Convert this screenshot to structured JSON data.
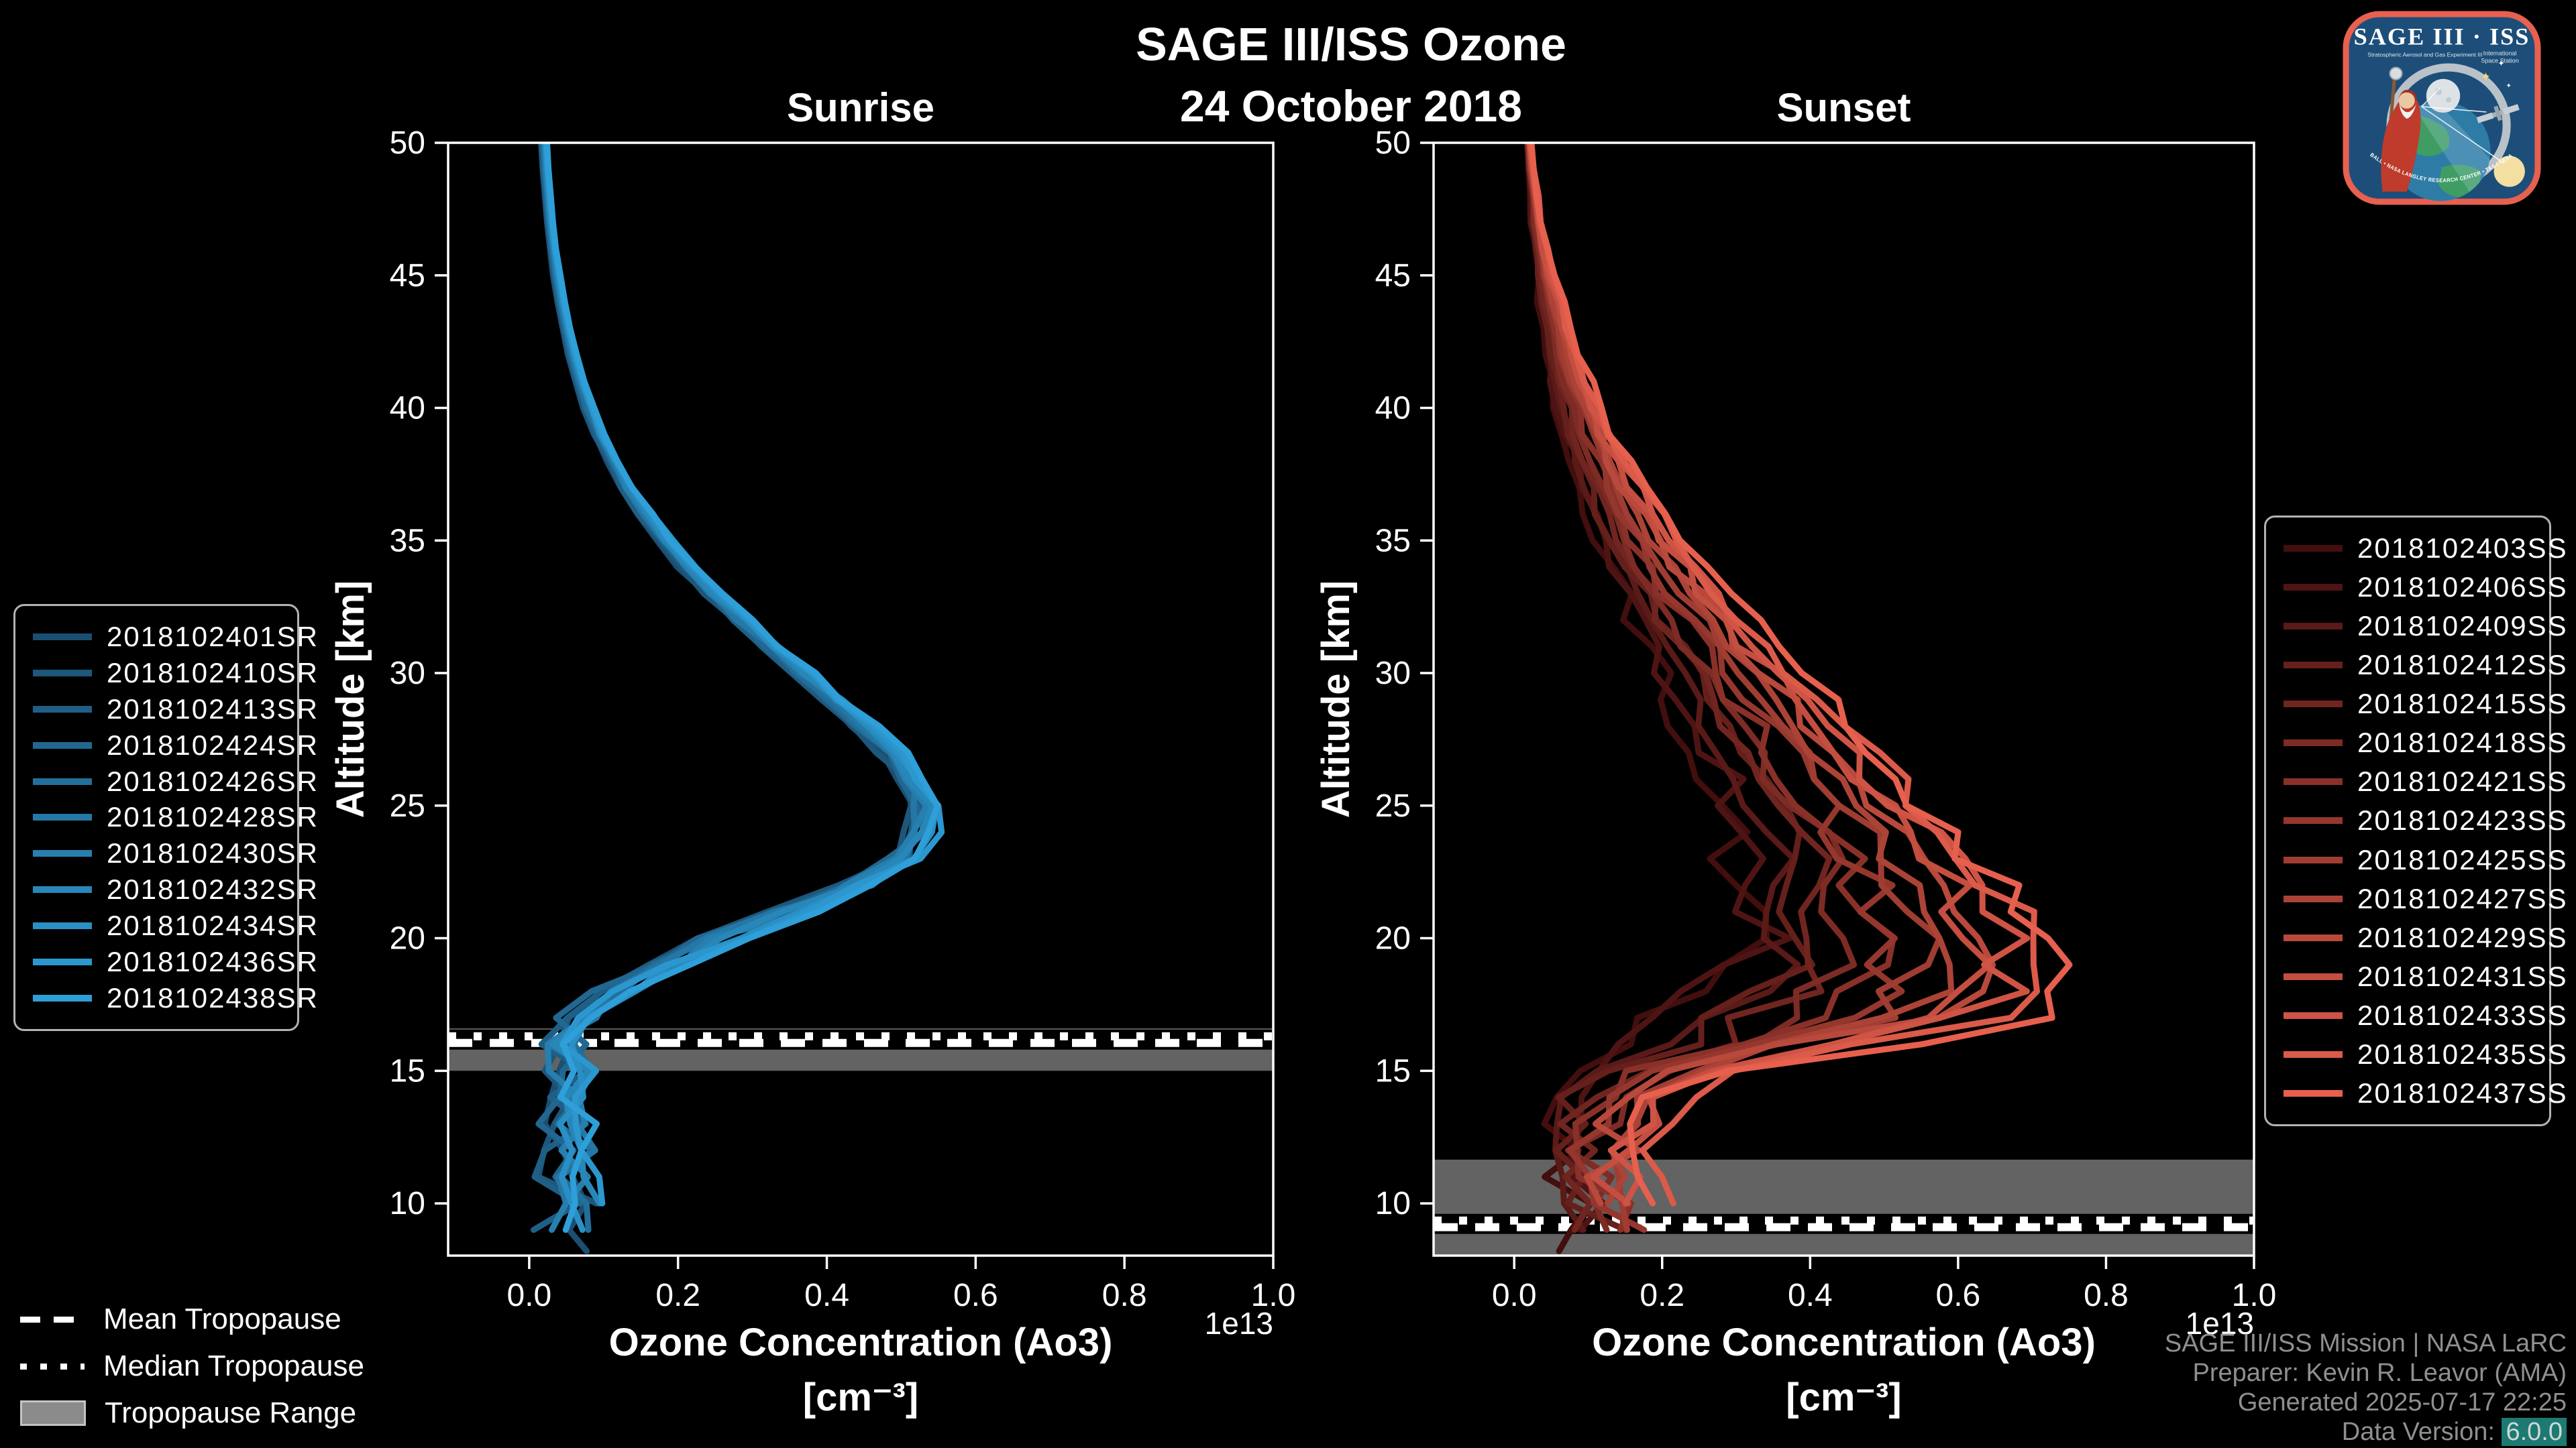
{
  "figure": {
    "suptitle_line1": "SAGE III/ISS Ozone",
    "suptitle_line2": "24 October 2018",
    "background_color": "#000000",
    "text_color": "#ffffff"
  },
  "chart_data": [
    {
      "type": "line",
      "id": "sunrise",
      "title": "Sunrise",
      "ylabel": "Altitude [km]",
      "xlabel_line1": "Ozone Concentration (Ao3)",
      "xlabel_line2": "[cm⁻³]",
      "offset_label": "1e13",
      "xlim": [
        -0.109,
        1.0
      ],
      "ylim": [
        8.03,
        50
      ],
      "x_ticks": [
        0.0,
        0.2,
        0.4,
        0.6,
        0.8,
        1.0
      ],
      "x_tick_labels": [
        "0.0",
        "0.2",
        "0.4",
        "0.6",
        "0.8",
        "1.0"
      ],
      "y_ticks": [
        50,
        45,
        40,
        35,
        30,
        25,
        20,
        15,
        10
      ],
      "grid": false,
      "legend_position": "left-outside",
      "altitudes": [
        50,
        49,
        48,
        47,
        46,
        45,
        44,
        43,
        42,
        41,
        40,
        39,
        38,
        37,
        36,
        35,
        34,
        33,
        32,
        31,
        30,
        29,
        28,
        27,
        26,
        25,
        24,
        23,
        22,
        21,
        20,
        19,
        18,
        17,
        16,
        15,
        14,
        13,
        12,
        11,
        10,
        9,
        8.2
      ],
      "mean_profile": [
        0.02,
        0.022,
        0.025,
        0.028,
        0.032,
        0.037,
        0.043,
        0.05,
        0.058,
        0.068,
        0.08,
        0.094,
        0.112,
        0.132,
        0.155,
        0.182,
        0.212,
        0.246,
        0.284,
        0.325,
        0.368,
        0.41,
        0.45,
        0.487,
        0.515,
        0.53,
        0.527,
        0.505,
        0.445,
        0.352,
        0.258,
        0.178,
        0.118,
        0.072,
        0.048,
        0.055,
        0.045,
        0.06,
        0.05,
        0.045,
        0.058,
        0.052,
        0.12
      ],
      "spread_profile": [
        0.004,
        0.004,
        0.004,
        0.004,
        0.004,
        0.005,
        0.005,
        0.005,
        0.006,
        0.006,
        0.007,
        0.007,
        0.008,
        0.008,
        0.009,
        0.01,
        0.01,
        0.011,
        0.012,
        0.012,
        0.013,
        0.013,
        0.014,
        0.014,
        0.015,
        0.015,
        0.016,
        0.018,
        0.02,
        0.02,
        0.02,
        0.018,
        0.016,
        0.014,
        0.012,
        0.012,
        0.012,
        0.012,
        0.012,
        0.012,
        0.012,
        0.012,
        0.012
      ],
      "noise_profile": [
        0,
        0,
        0,
        0,
        0,
        0,
        0,
        0,
        0,
        0,
        0.002,
        0.002,
        0.003,
        0.003,
        0.004,
        0.004,
        0.005,
        0.005,
        0.006,
        0.006,
        0.007,
        0.008,
        0.009,
        0.01,
        0.012,
        0.014,
        0.016,
        0.018,
        0.022,
        0.024,
        0.024,
        0.022,
        0.022,
        0.024,
        0.028,
        0.034,
        0.036,
        0.038,
        0.038,
        0.04,
        0.042,
        0.044,
        0.05
      ],
      "peak_value_1e13": 0.53,
      "peak_altitude_km": 25,
      "tropopause": {
        "mean_km": 16.05,
        "median_km": 16.3,
        "range_km": [
          15.0,
          16.6
        ]
      },
      "colors": {
        "band": "rgba(160,160,160,0.62)",
        "tropopause_lines": "#ffffff",
        "frame": "#ffffff"
      },
      "series": [
        {
          "label": "2018102401SR",
          "color": "#1b4f72"
        },
        {
          "label": "2018102410SR",
          "color": "#1d577c"
        },
        {
          "label": "2018102413SR",
          "color": "#1f5f86"
        },
        {
          "label": "2018102424SR",
          "color": "#216791"
        },
        {
          "label": "2018102426SR",
          "color": "#236f9b"
        },
        {
          "label": "2018102428SR",
          "color": "#2577a5"
        },
        {
          "label": "2018102430SR",
          "color": "#267faf"
        },
        {
          "label": "2018102432SR",
          "color": "#2887b9"
        },
        {
          "label": "2018102434SR",
          "color": "#2a8fc4"
        },
        {
          "label": "2018102436SR",
          "color": "#2c97ce"
        },
        {
          "label": "2018102438SR",
          "color": "#2e9fd8"
        }
      ]
    },
    {
      "type": "line",
      "id": "sunset",
      "title": "Sunset",
      "ylabel": "Altitude [km]",
      "xlabel_line1": "Ozone Concentration (Ao3)",
      "xlabel_line2": "[cm⁻³]",
      "offset_label": "1e13",
      "xlim": [
        -0.109,
        1.0
      ],
      "ylim": [
        8.03,
        50
      ],
      "x_ticks": [
        0.0,
        0.2,
        0.4,
        0.6,
        0.8,
        1.0
      ],
      "x_tick_labels": [
        "0.0",
        "0.2",
        "0.4",
        "0.6",
        "0.8",
        "1.0"
      ],
      "y_ticks": [
        50,
        45,
        40,
        35,
        30,
        25,
        20,
        15,
        10
      ],
      "grid": false,
      "legend_position": "right-outside",
      "altitudes": [
        50,
        49,
        48,
        47,
        46,
        45,
        44,
        43,
        42,
        41,
        40,
        39,
        38,
        37,
        36,
        35,
        34,
        33,
        32,
        31,
        30,
        29,
        28,
        27,
        26,
        25,
        24,
        23,
        22,
        21,
        20,
        19,
        18,
        17,
        16,
        15,
        14,
        13,
        12,
        11,
        10,
        9,
        8.2
      ],
      "mean_profile": [
        0.02,
        0.023,
        0.027,
        0.031,
        0.036,
        0.042,
        0.049,
        0.057,
        0.066,
        0.076,
        0.088,
        0.101,
        0.116,
        0.132,
        0.15,
        0.17,
        0.192,
        0.215,
        0.239,
        0.264,
        0.29,
        0.316,
        0.342,
        0.368,
        0.394,
        0.42,
        0.445,
        0.468,
        0.488,
        0.503,
        0.512,
        0.51,
        0.49,
        0.44,
        0.33,
        0.2,
        0.145,
        0.125,
        0.112,
        0.115,
        0.13,
        0.14,
        0.145
      ],
      "spread_profile": [
        0.003,
        0.004,
        0.005,
        0.007,
        0.009,
        0.012,
        0.015,
        0.018,
        0.022,
        0.026,
        0.03,
        0.035,
        0.04,
        0.046,
        0.052,
        0.058,
        0.065,
        0.072,
        0.08,
        0.088,
        0.096,
        0.104,
        0.112,
        0.122,
        0.132,
        0.142,
        0.152,
        0.165,
        0.18,
        0.196,
        0.212,
        0.228,
        0.25,
        0.24,
        0.17,
        0.1,
        0.07,
        0.06,
        0.055,
        0.055,
        0.055,
        0.055,
        0.055
      ],
      "noise_profile": [
        0.001,
        0.001,
        0.002,
        0.002,
        0.003,
        0.003,
        0.004,
        0.004,
        0.005,
        0.005,
        0.006,
        0.007,
        0.008,
        0.009,
        0.01,
        0.011,
        0.012,
        0.013,
        0.014,
        0.016,
        0.018,
        0.02,
        0.022,
        0.024,
        0.026,
        0.028,
        0.03,
        0.032,
        0.034,
        0.036,
        0.038,
        0.04,
        0.042,
        0.044,
        0.046,
        0.044,
        0.04,
        0.038,
        0.036,
        0.036,
        0.038,
        0.04,
        0.042
      ],
      "peak_value_1e13": 0.77,
      "peak_altitude_km": 17.5,
      "tropopause": {
        "mean_km": 9.1,
        "median_km": 9.35,
        "range_km": [
          8.03,
          11.65
        ]
      },
      "colors": {
        "band": "rgba(160,160,160,0.62)",
        "tropopause_lines": "#ffffff",
        "frame": "#ffffff"
      },
      "series": [
        {
          "label": "2018102403SS",
          "color": "#420e0e"
        },
        {
          "label": "2018102406SS",
          "color": "#4e1413"
        },
        {
          "label": "2018102409SS",
          "color": "#5a1a17"
        },
        {
          "label": "2018102412SS",
          "color": "#65201c"
        },
        {
          "label": "2018102415SS",
          "color": "#712520"
        },
        {
          "label": "2018102418SS",
          "color": "#7d2b25"
        },
        {
          "label": "2018102421SS",
          "color": "#893129"
        },
        {
          "label": "2018102423SS",
          "color": "#95372e"
        },
        {
          "label": "2018102425SS",
          "color": "#a03d33"
        },
        {
          "label": "2018102427SS",
          "color": "#ac4337"
        },
        {
          "label": "2018102429SS",
          "color": "#b8493c"
        },
        {
          "label": "2018102431SS",
          "color": "#c44e40"
        },
        {
          "label": "2018102433SS",
          "color": "#cf5445"
        },
        {
          "label": "2018102435SS",
          "color": "#db5a49"
        },
        {
          "label": "2018102437SS",
          "color": "#e7604e"
        }
      ]
    }
  ],
  "tropopause_legend": {
    "mean": "Mean Tropopause",
    "median": "Median Tropopause",
    "range": "Tropopause Range"
  },
  "attribution": {
    "line1": "SAGE III/ISS Mission | NASA LaRC",
    "line2": "Preparer: Kevin R. Leavor (AMA)",
    "line3": "Generated 2025-07-17 22:25",
    "line4_label": "Data Version: ",
    "line4_value": "6.0.0"
  },
  "logo": {
    "title": "SAGE III · ISS",
    "subtitle_left": "Stratospheric Aerosol and Gas Experiment III",
    "subtitle_right_1": "International",
    "subtitle_right_2": "Space Station",
    "ring_text": "BALL • NASA LANGLEY RESEARCH CENTER • TAS-I • ESA",
    "border_color": "#e8604f",
    "background_color": "#1d4e79"
  }
}
